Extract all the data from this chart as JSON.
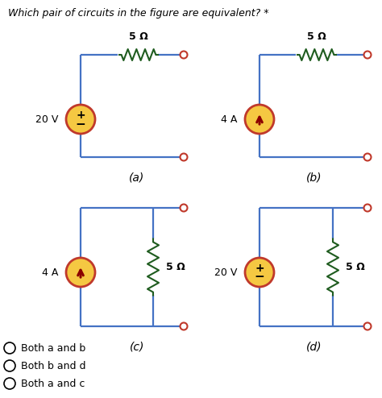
{
  "title": "Which pair of circuits in the figure are equivalent? *",
  "title_fontsize": 9,
  "wire_color": "#4472C4",
  "resistor_color": "#1F5C1F",
  "source_fill": "#F5C842",
  "source_edge": "#C0392B",
  "terminal_stroke": "#C0392B",
  "label_color": "#000000",
  "options": [
    "Both a and b",
    "Both b and d",
    "Both a and c"
  ],
  "circuit_labels": [
    "(a)",
    "(b)",
    "(c)",
    "(d)"
  ],
  "resistor_label": "5 Ω",
  "sources": {
    "a": {
      "type": "voltage",
      "label": "20 V"
    },
    "b": {
      "type": "current",
      "label": "4 A"
    },
    "c": {
      "type": "current",
      "label": "4 A"
    },
    "d": {
      "type": "voltage",
      "label": "20 V"
    }
  }
}
